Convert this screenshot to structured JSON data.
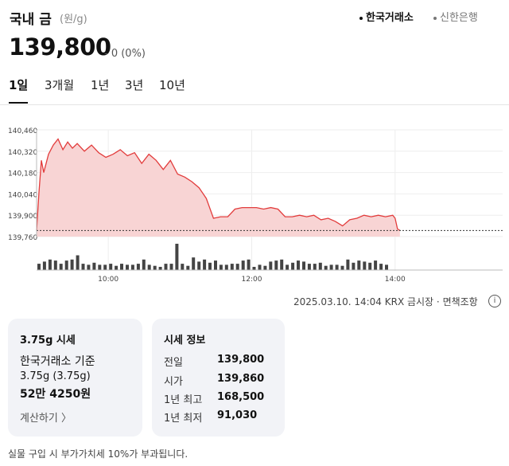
{
  "header": {
    "title": "국내 금",
    "unit": "(원/g)",
    "sources": [
      {
        "label": "한국거래소",
        "active": true
      },
      {
        "label": "신한은행",
        "active": false
      }
    ]
  },
  "quote": {
    "price": "139,800",
    "change": "- 0 (0%)"
  },
  "tabs": [
    {
      "label": "1일",
      "active": true
    },
    {
      "label": "3개월",
      "active": false
    },
    {
      "label": "1년",
      "active": false
    },
    {
      "label": "3년",
      "active": false
    },
    {
      "label": "10년",
      "active": false
    }
  ],
  "chart_data": {
    "type": "area",
    "y_tick_labels": [
      "140,460",
      "140,320",
      "140,180",
      "140,040",
      "139,900",
      "139,760"
    ],
    "ylim": [
      139760,
      140460
    ],
    "x_tick_labels": [
      "10:00",
      "12:00",
      "14:00"
    ],
    "reference_line": 139800,
    "color": "#e23c3c",
    "fill": "#f8d4d4",
    "series_price": [
      [
        "09:00",
        139800
      ],
      [
        "09:02",
        140050
      ],
      [
        "09:04",
        140260
      ],
      [
        "09:06",
        140180
      ],
      [
        "09:10",
        140300
      ],
      [
        "09:14",
        140360
      ],
      [
        "09:18",
        140400
      ],
      [
        "09:22",
        140330
      ],
      [
        "09:26",
        140380
      ],
      [
        "09:30",
        140340
      ],
      [
        "09:34",
        140370
      ],
      [
        "09:40",
        140320
      ],
      [
        "09:46",
        140360
      ],
      [
        "09:52",
        140310
      ],
      [
        "09:58",
        140280
      ],
      [
        "10:04",
        140300
      ],
      [
        "10:10",
        140330
      ],
      [
        "10:16",
        140290
      ],
      [
        "10:22",
        140310
      ],
      [
        "10:28",
        140240
      ],
      [
        "10:34",
        140300
      ],
      [
        "10:40",
        140260
      ],
      [
        "10:46",
        140200
      ],
      [
        "10:52",
        140260
      ],
      [
        "10:58",
        140170
      ],
      [
        "11:04",
        140150
      ],
      [
        "11:10",
        140120
      ],
      [
        "11:16",
        140080
      ],
      [
        "11:22",
        140010
      ],
      [
        "11:28",
        139880
      ],
      [
        "11:34",
        139890
      ],
      [
        "11:40",
        139890
      ],
      [
        "11:46",
        139940
      ],
      [
        "11:52",
        139950
      ],
      [
        "11:58",
        139950
      ],
      [
        "12:04",
        139950
      ],
      [
        "12:10",
        139940
      ],
      [
        "12:16",
        139950
      ],
      [
        "12:22",
        139940
      ],
      [
        "12:28",
        139890
      ],
      [
        "12:34",
        139890
      ],
      [
        "12:40",
        139900
      ],
      [
        "12:46",
        139890
      ],
      [
        "12:52",
        139900
      ],
      [
        "12:58",
        139870
      ],
      [
        "13:04",
        139880
      ],
      [
        "13:10",
        139860
      ],
      [
        "13:16",
        139830
      ],
      [
        "13:22",
        139870
      ],
      [
        "13:28",
        139880
      ],
      [
        "13:34",
        139900
      ],
      [
        "13:40",
        139890
      ],
      [
        "13:46",
        139900
      ],
      [
        "13:52",
        139890
      ],
      [
        "13:58",
        139900
      ],
      [
        "14:00",
        139880
      ],
      [
        "14:02",
        139810
      ],
      [
        "14:04",
        139800
      ]
    ],
    "series_volume": [
      6,
      8,
      10,
      9,
      6,
      9,
      10,
      14,
      6,
      5,
      7,
      5,
      5,
      6,
      4,
      6,
      5,
      5,
      6,
      10,
      5,
      4,
      3,
      6,
      6,
      25,
      6,
      4,
      12,
      8,
      10,
      7,
      9,
      5,
      5,
      6,
      6,
      9,
      10,
      3,
      5,
      4,
      8,
      9,
      10,
      5,
      7,
      9,
      8,
      6,
      6,
      7,
      4,
      5,
      5,
      4,
      10,
      7,
      9,
      8,
      7,
      9,
      6,
      5
    ]
  },
  "timestamp": "2025.03.10. 14:04 KRX 금시장",
  "disclaimer_link": "면책조항",
  "card1": {
    "title": "3.75g 시세",
    "basis": "한국거래소 기준",
    "weight": "3.75g (3.75g)",
    "amount": "52만 4250원",
    "calc_link": "계산하기 〉"
  },
  "card2": {
    "title": "시세 정보",
    "rows": [
      {
        "label": "전일",
        "value": "139,800"
      },
      {
        "label": "시가",
        "value": "139,860"
      },
      {
        "label": "1년 최고",
        "value": "168,500"
      },
      {
        "label": "1년 최저",
        "value": "91,030"
      }
    ]
  },
  "footer": "실물 구입 시 부가가치세 10%가 부과됩니다."
}
